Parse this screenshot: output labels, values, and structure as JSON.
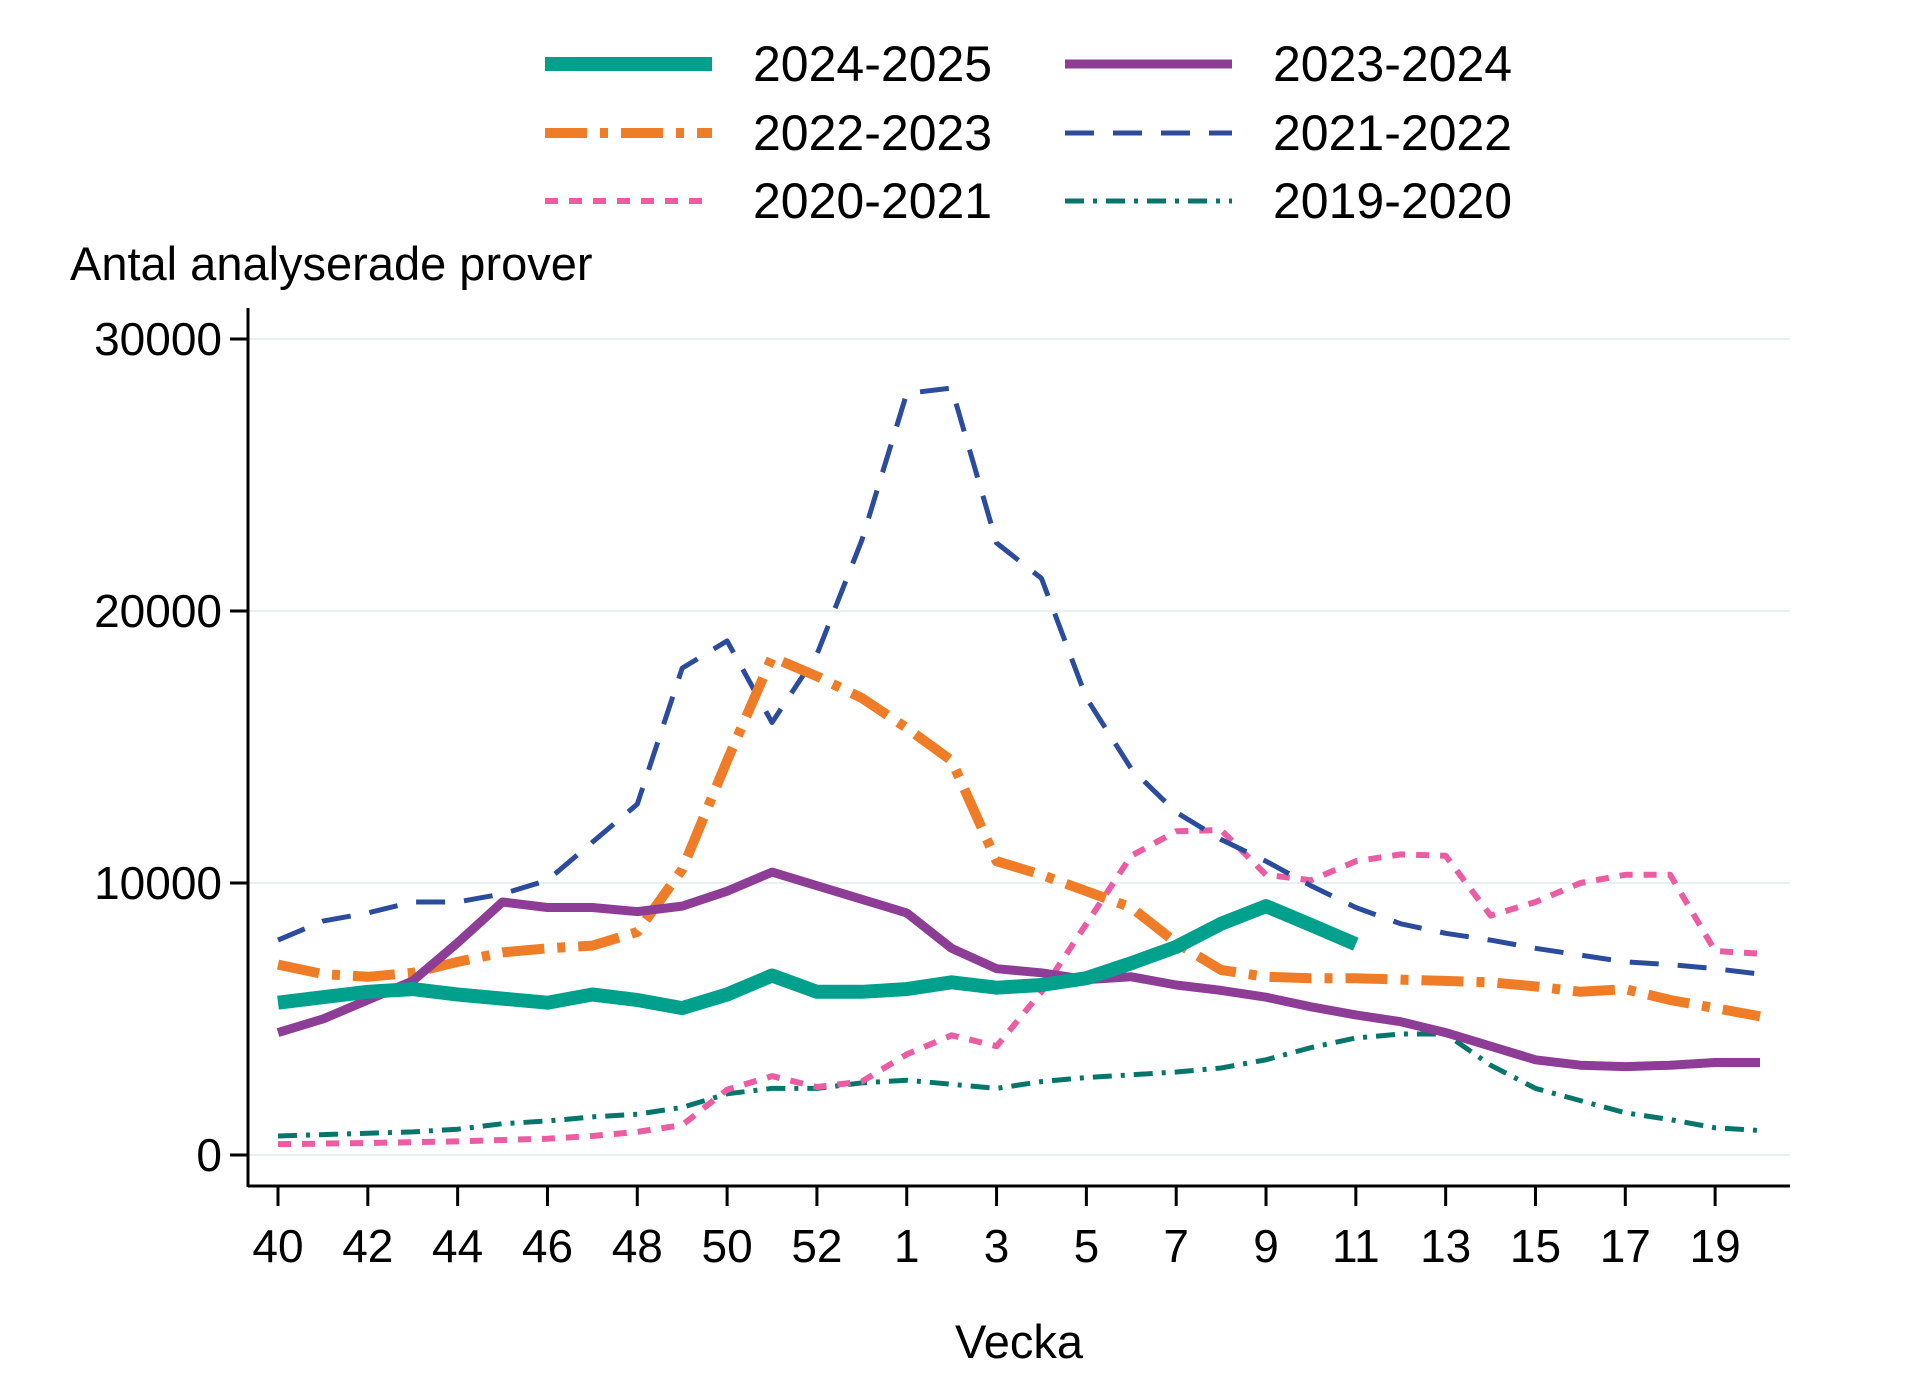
{
  "chart_data": {
    "type": "line",
    "ylabel": "Antal analyserade prover",
    "xlabel": "Vecka",
    "ylim": [
      0,
      30000
    ],
    "yticks": [
      0,
      10000,
      20000,
      30000
    ],
    "ytick_labels": [
      "0",
      "10000",
      "20000",
      "30000"
    ],
    "grid": "horizontal",
    "gridline_color": "#E9F0F1",
    "axis_color": "#000000",
    "legend_position": "top",
    "categories": [
      "40",
      "41",
      "42",
      "43",
      "44",
      "45",
      "46",
      "47",
      "48",
      "49",
      "50",
      "51",
      "52",
      "53",
      "1",
      "2",
      "3",
      "4",
      "5",
      "6",
      "7",
      "8",
      "9",
      "10",
      "11",
      "12",
      "13",
      "14",
      "15",
      "16",
      "17",
      "18",
      "19",
      "20"
    ],
    "x_tick_labels": [
      "40",
      "42",
      "44",
      "46",
      "48",
      "50",
      "52",
      "1",
      "3",
      "5",
      "7",
      "9",
      "11",
      "13",
      "15",
      "17",
      "19"
    ],
    "series": [
      {
        "name": "2024-2025",
        "color": "#00A18C",
        "style": "solid",
        "width": 14,
        "dasharray": "",
        "values": [
          5600,
          5800,
          6000,
          6100,
          5900,
          5750,
          5600,
          5900,
          5700,
          5400,
          5900,
          6600,
          6000,
          6000,
          6100,
          6350,
          6150,
          6250,
          6500,
          7050,
          7650,
          8500,
          9150,
          8460,
          7750
        ]
      },
      {
        "name": "2023-2024",
        "color": "#8E3D97",
        "style": "solid",
        "width": 9,
        "dasharray": "",
        "values": [
          4500,
          5000,
          5700,
          6400,
          7800,
          9300,
          9100,
          9100,
          8950,
          9150,
          9700,
          10400,
          9900,
          9400,
          8900,
          7600,
          6850,
          6700,
          6450,
          6550,
          6250,
          6050,
          5800,
          5450,
          5150,
          4900,
          4500,
          4000,
          3500,
          3300,
          3250,
          3300,
          3400,
          3400
        ]
      },
      {
        "name": "2022-2023",
        "color": "#EF7D28",
        "style": "dash-dot",
        "width": 10,
        "dasharray": "42 13 8 13",
        "values": [
          7000,
          6650,
          6550,
          6700,
          7100,
          7450,
          7600,
          7700,
          8200,
          10500,
          14500,
          18300,
          17600,
          16800,
          15700,
          14500,
          10800,
          10300,
          9700,
          9100,
          7800,
          6800,
          6550,
          6500,
          6500,
          6450,
          6400,
          6350,
          6200,
          6000,
          6100,
          5700,
          5400,
          5100
        ]
      },
      {
        "name": "2021-2022",
        "color": "#2B4C9D",
        "style": "dash",
        "width": 5,
        "dasharray": "29 19",
        "values": [
          7900,
          8600,
          8900,
          9300,
          9300,
          9600,
          10100,
          11500,
          12900,
          17900,
          18900,
          15900,
          18400,
          22600,
          28000,
          28200,
          22500,
          21200,
          16800,
          14200,
          12600,
          11600,
          10800,
          9900,
          9100,
          8500,
          8150,
          7900,
          7600,
          7350,
          7100,
          7000,
          6850,
          6650
        ]
      },
      {
        "name": "2020-2021",
        "color": "#EC5CA3",
        "style": "dash",
        "width": 6,
        "dasharray": "13 11",
        "values": [
          400,
          420,
          440,
          470,
          500,
          550,
          600,
          700,
          850,
          1100,
          2400,
          2900,
          2500,
          2700,
          3700,
          4400,
          4000,
          6000,
          8500,
          11000,
          11900,
          11950,
          10300,
          10100,
          10800,
          11050,
          11000,
          8800,
          9300,
          10000,
          10300,
          10300,
          7500,
          7400
        ]
      },
      {
        "name": "2019-2020",
        "color": "#06756B",
        "style": "dash-dot",
        "width": 5,
        "dasharray": "19 9 4 9",
        "values": [
          700,
          750,
          800,
          850,
          950,
          1150,
          1250,
          1400,
          1500,
          1750,
          2250,
          2450,
          2450,
          2650,
          2750,
          2600,
          2450,
          2700,
          2850,
          2950,
          3050,
          3200,
          3500,
          3950,
          4300,
          4450,
          4450,
          3300,
          2450,
          2000,
          1550,
          1300,
          1000,
          900
        ]
      }
    ]
  }
}
